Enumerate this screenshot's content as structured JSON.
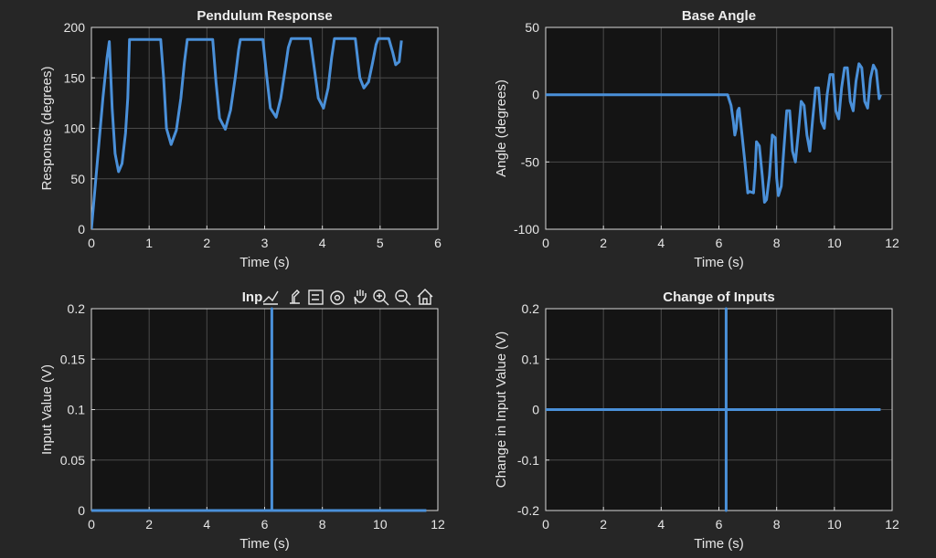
{
  "colors": {
    "figure_bg": "#262626",
    "axes_bg": "#141414",
    "series": "#4a90d9",
    "text": "#e6e6e6"
  },
  "axes_toolbar": {
    "icons": [
      "data-tips-icon",
      "brush-icon",
      "legend-icon",
      "rotate-icon",
      "pan-icon",
      "zoom-in-icon",
      "zoom-out-icon",
      "home-icon"
    ]
  },
  "chart_data": [
    {
      "type": "line",
      "title": "Pendulum Response",
      "xlabel": "Time (s)",
      "ylabel": "Response (degrees)",
      "xlim": [
        0,
        6
      ],
      "ylim": [
        0,
        200
      ],
      "xticks": [
        0,
        1,
        2,
        3,
        4,
        5,
        6
      ],
      "yticks": [
        0,
        50,
        100,
        150,
        200
      ],
      "xtick_labels": [
        "0",
        "1",
        "2",
        "3",
        "4",
        "5",
        "6"
      ],
      "ytick_labels": [
        "0",
        "50",
        "100",
        "150",
        "200"
      ],
      "grid": true,
      "series": [
        {
          "x": [
            0,
            0.1,
            0.2,
            0.27,
            0.31,
            0.36,
            0.41,
            0.47,
            0.53,
            0.59,
            0.63,
            0.66,
            0.72,
            1.2,
            1.25,
            1.3,
            1.38,
            1.47,
            1.55,
            1.61,
            1.66,
            1.7,
            2.1,
            2.16,
            2.22,
            2.32,
            2.41,
            2.49,
            2.55,
            2.58,
            2.97,
            3.04,
            3.1,
            3.2,
            3.28,
            3.36,
            3.41,
            3.46,
            3.79,
            3.87,
            3.93,
            4.02,
            4.1,
            4.16,
            4.21,
            4.27,
            4.57,
            4.65,
            4.72,
            4.8,
            4.87,
            4.93,
            4.97,
            5.02,
            5.15,
            5.22,
            5.27,
            5.33,
            5.37
          ],
          "y": [
            0,
            65,
            130,
            170,
            186,
            120,
            75,
            57,
            65,
            95,
            130,
            188,
            188,
            188,
            150,
            100,
            84,
            98,
            130,
            165,
            188,
            188,
            188,
            145,
            110,
            99,
            118,
            150,
            178,
            188,
            188,
            150,
            120,
            111,
            130,
            160,
            180,
            189,
            189,
            155,
            130,
            120,
            140,
            170,
            189,
            189,
            189,
            150,
            140,
            146,
            165,
            183,
            189,
            189,
            189,
            175,
            163,
            166,
            187
          ]
        }
      ]
    },
    {
      "type": "line",
      "title": "Base Angle",
      "xlabel": "Time (s)",
      "ylabel": "Angle (degrees)",
      "xlim": [
        0,
        12
      ],
      "ylim": [
        -100,
        50
      ],
      "xticks": [
        0,
        2,
        4,
        6,
        8,
        10,
        12
      ],
      "yticks": [
        -100,
        -50,
        0,
        50
      ],
      "xtick_labels": [
        "0",
        "2",
        "4",
        "6",
        "8",
        "10",
        "12"
      ],
      "ytick_labels": [
        "-100",
        "-50",
        "0",
        "50"
      ],
      "grid": true,
      "series": [
        {
          "x": [
            0,
            6.3,
            6.42,
            6.5,
            6.55,
            6.6,
            6.65,
            6.7,
            6.8,
            6.9,
            7.0,
            7.06,
            7.2,
            7.26,
            7.3,
            7.4,
            7.5,
            7.58,
            7.65,
            7.75,
            7.85,
            7.95,
            8.0,
            8.06,
            8.16,
            8.25,
            8.35,
            8.45,
            8.55,
            8.65,
            8.75,
            8.85,
            8.95,
            9.05,
            9.15,
            9.25,
            9.35,
            9.45,
            9.55,
            9.65,
            9.75,
            9.85,
            9.95,
            10.05,
            10.15,
            10.25,
            10.35,
            10.45,
            10.55,
            10.65,
            10.75,
            10.85,
            10.95,
            11.05,
            11.15,
            11.25,
            11.35,
            11.45,
            11.55,
            11.6
          ],
          "y": [
            0,
            0,
            -8,
            -20,
            -30,
            -25,
            -12,
            -10,
            -30,
            -50,
            -73,
            -72,
            -73,
            -55,
            -35,
            -38,
            -60,
            -80,
            -78,
            -60,
            -30,
            -32,
            -62,
            -75,
            -68,
            -40,
            -12,
            -12,
            -42,
            -50,
            -28,
            -5,
            -8,
            -30,
            -42,
            -18,
            5,
            5,
            -20,
            -25,
            0,
            15,
            15,
            -12,
            -18,
            5,
            20,
            20,
            -5,
            -12,
            10,
            23,
            20,
            -5,
            -10,
            12,
            22,
            18,
            -3,
            0
          ]
        }
      ]
    },
    {
      "type": "line",
      "title": "Inp",
      "xlabel": "Time (s)",
      "ylabel": "Input Value (V)",
      "xlim": [
        0,
        12
      ],
      "ylim": [
        0,
        0.2
      ],
      "xticks": [
        0,
        2,
        4,
        6,
        8,
        10,
        12
      ],
      "yticks": [
        0,
        0.05,
        0.1,
        0.15,
        0.2
      ],
      "xtick_labels": [
        "0",
        "2",
        "4",
        "6",
        "8",
        "10",
        "12"
      ],
      "ytick_labels": [
        "0",
        "0.05",
        "0.1",
        "0.15",
        "0.2"
      ],
      "grid": true,
      "series": [
        {
          "x": [
            0,
            6.25,
            6.25,
            6.25,
            11.6
          ],
          "y": [
            0,
            0,
            0.2,
            0,
            0
          ]
        }
      ]
    },
    {
      "type": "line",
      "title": "Change of Inputs",
      "xlabel": "Time (s)",
      "ylabel": "Change in Input Value (V)",
      "xlim": [
        0,
        12
      ],
      "ylim": [
        -0.2,
        0.2
      ],
      "xticks": [
        0,
        2,
        4,
        6,
        8,
        10,
        12
      ],
      "yticks": [
        -0.2,
        -0.1,
        0,
        0.1,
        0.2
      ],
      "xtick_labels": [
        "0",
        "2",
        "4",
        "6",
        "8",
        "10",
        "12"
      ],
      "ytick_labels": [
        "-0.2",
        "-0.1",
        "0",
        "0.1",
        "0.2"
      ],
      "grid": true,
      "series": [
        {
          "x": [
            0,
            6.25,
            6.25,
            6.25,
            6.25,
            11.6
          ],
          "y": [
            0,
            0,
            0.2,
            -0.2,
            0,
            0
          ]
        }
      ]
    }
  ]
}
